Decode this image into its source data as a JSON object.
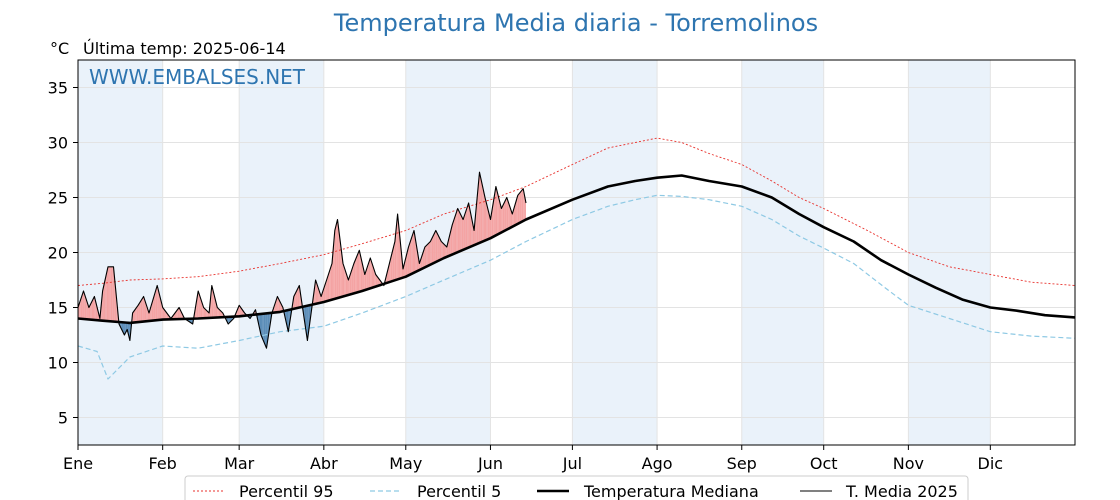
{
  "header": {
    "title": "Temperatura Media diaria - Torremolinos",
    "unit": "°C",
    "last_temp": "Última temp: 2025-06-14",
    "watermark": "WWW.EMBALSES.NET"
  },
  "colors": {
    "p95": "#e8312c",
    "p5": "#8ec9e4",
    "median": "#000000",
    "media2025": "#000000",
    "above_fill": "#f4a3a3",
    "below_fill": "#5b8db8",
    "month_band": "#eaf2fa",
    "title": "#2e75b0"
  },
  "chart_data": {
    "type": "line",
    "title": "Temperatura Media diaria - Torremolinos",
    "ylabel": "°C",
    "ylim": [
      2.5,
      37.5
    ],
    "yticks": [
      5,
      10,
      15,
      20,
      25,
      30,
      35
    ],
    "xlim": [
      1,
      366
    ],
    "grid": true,
    "legend_position": "bottom",
    "months": [
      {
        "label": "Ene",
        "day": 1
      },
      {
        "label": "Feb",
        "day": 32
      },
      {
        "label": "Mar",
        "day": 60
      },
      {
        "label": "Abr",
        "day": 91
      },
      {
        "label": "May",
        "day": 121
      },
      {
        "label": "Jun",
        "day": 152
      },
      {
        "label": "Jul",
        "day": 182
      },
      {
        "label": "Ago",
        "day": 213
      },
      {
        "label": "Sep",
        "day": 244
      },
      {
        "label": "Oct",
        "day": 274
      },
      {
        "label": "Nov",
        "day": 305
      },
      {
        "label": "Dic",
        "day": 335
      }
    ],
    "series": [
      {
        "name": "Percentil 95",
        "x": [
          1,
          10,
          20,
          32,
          45,
          60,
          75,
          91,
          105,
          121,
          135,
          152,
          165,
          182,
          195,
          205,
          213,
          222,
          232,
          244,
          255,
          265,
          274,
          290,
          305,
          320,
          335,
          350,
          366
        ],
        "values": [
          17.0,
          17.2,
          17.5,
          17.6,
          17.8,
          18.3,
          19.0,
          19.8,
          20.8,
          22.0,
          23.5,
          24.8,
          26.0,
          28.0,
          29.5,
          30.0,
          30.4,
          30.0,
          29.0,
          28.0,
          26.5,
          25.0,
          24.0,
          22.0,
          20.0,
          18.7,
          18.0,
          17.3,
          17.0
        ]
      },
      {
        "name": "Percentil 5",
        "x": [
          1,
          8,
          12,
          20,
          32,
          45,
          60,
          75,
          91,
          105,
          121,
          135,
          152,
          165,
          182,
          195,
          205,
          213,
          222,
          232,
          244,
          255,
          265,
          274,
          285,
          298,
          305,
          320,
          335,
          350,
          366
        ],
        "values": [
          11.5,
          11.0,
          8.5,
          10.5,
          11.5,
          11.3,
          12.0,
          12.8,
          13.3,
          14.5,
          16.0,
          17.5,
          19.3,
          21.0,
          23.0,
          24.2,
          24.8,
          25.2,
          25.1,
          24.8,
          24.2,
          23.0,
          21.5,
          20.4,
          19.0,
          16.5,
          15.2,
          14.0,
          12.8,
          12.4,
          12.2
        ]
      },
      {
        "name": "Temperatura Mediana",
        "x": [
          1,
          10,
          20,
          32,
          45,
          60,
          75,
          91,
          105,
          121,
          135,
          152,
          165,
          182,
          195,
          205,
          213,
          222,
          232,
          244,
          255,
          265,
          274,
          285,
          295,
          305,
          315,
          325,
          335,
          345,
          355,
          366
        ],
        "values": [
          14.0,
          13.8,
          13.6,
          13.9,
          14.0,
          14.2,
          14.6,
          15.5,
          16.5,
          17.8,
          19.5,
          21.3,
          23.0,
          24.8,
          26.0,
          26.5,
          26.8,
          27.0,
          26.5,
          26.0,
          25.0,
          23.5,
          22.3,
          21.0,
          19.3,
          18.0,
          16.8,
          15.7,
          15.0,
          14.7,
          14.3,
          14.1
        ]
      },
      {
        "name": "T. Media 2025",
        "x": [
          1,
          3,
          5,
          7,
          9,
          10,
          12,
          14,
          16,
          18,
          19,
          20,
          21,
          23,
          25,
          27,
          30,
          32,
          35,
          38,
          40,
          43,
          45,
          47,
          49,
          50,
          52,
          54,
          56,
          58,
          60,
          62,
          64,
          66,
          68,
          70,
          72,
          74,
          76,
          78,
          80,
          82,
          85,
          88,
          90,
          92,
          94,
          95,
          96,
          98,
          100,
          102,
          104,
          106,
          108,
          110,
          113,
          115,
          117,
          118,
          120,
          122,
          124,
          126,
          128,
          130,
          132,
          134,
          136,
          138,
          140,
          142,
          144,
          146,
          148,
          150,
          152,
          154,
          156,
          158,
          160,
          162,
          164,
          165
        ],
        "values": [
          15.0,
          16.5,
          15.0,
          16.0,
          14.0,
          16.5,
          18.7,
          18.7,
          13.5,
          12.5,
          13.0,
          12.0,
          14.5,
          15.2,
          16.0,
          14.5,
          17.0,
          15.0,
          14.0,
          15.0,
          14.0,
          13.5,
          16.5,
          15.0,
          14.5,
          17.0,
          15.0,
          14.5,
          13.5,
          14.0,
          15.2,
          14.5,
          14.0,
          14.8,
          12.5,
          11.3,
          14.5,
          16.0,
          15.0,
          12.8,
          16.0,
          17.0,
          12.0,
          17.5,
          16.0,
          17.5,
          19.0,
          22.0,
          23.0,
          19.0,
          17.5,
          19.0,
          20.2,
          18.0,
          19.5,
          18.0,
          17.0,
          19.0,
          21.0,
          23.5,
          18.5,
          20.5,
          22.0,
          19.0,
          20.5,
          21.0,
          22.0,
          21.0,
          20.5,
          22.5,
          24.0,
          23.0,
          24.5,
          22.0,
          27.3,
          25.0,
          23.0,
          26.0,
          24.0,
          25.0,
          23.5,
          25.2,
          25.8,
          24.5
        ]
      }
    ]
  }
}
